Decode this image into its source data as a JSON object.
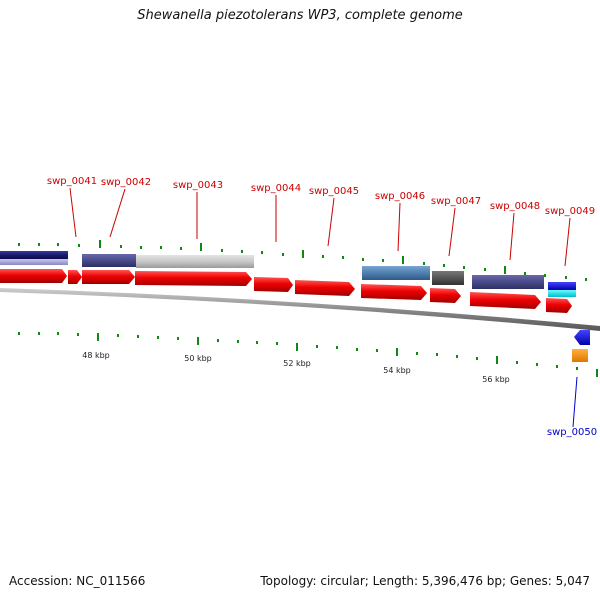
{
  "title": "Shewanella piezotolerans WP3, complete genome",
  "footer": {
    "accession": "Accession: NC_011566",
    "stats": "Topology: circular; Length: 5,396,476 bp; Genes: 5,047"
  },
  "gene_labels": [
    {
      "text": "swp_0041",
      "color": "#cc0000"
    },
    {
      "text": "swp_0042",
      "color": "#cc0000"
    },
    {
      "text": "swp_0043",
      "color": "#cc0000"
    },
    {
      "text": "swp_0044",
      "color": "#cc0000"
    },
    {
      "text": "swp_0045",
      "color": "#cc0000"
    },
    {
      "text": "swp_0046",
      "color": "#cc0000"
    },
    {
      "text": "swp_0047",
      "color": "#cc0000"
    },
    {
      "text": "swp_0048",
      "color": "#cc0000"
    },
    {
      "text": "swp_0049",
      "color": "#cc0000"
    },
    {
      "text": "swp_0050",
      "color": "#0000cc"
    }
  ],
  "kbp_labels": [
    "48 kbp",
    "50 kbp",
    "52 kbp",
    "54 kbp",
    "56 kbp"
  ],
  "colors": {
    "forward_gene": "#ee0000",
    "reverse_gene": "#0000dd",
    "backbone": "#888888",
    "tick": "#118811"
  }
}
